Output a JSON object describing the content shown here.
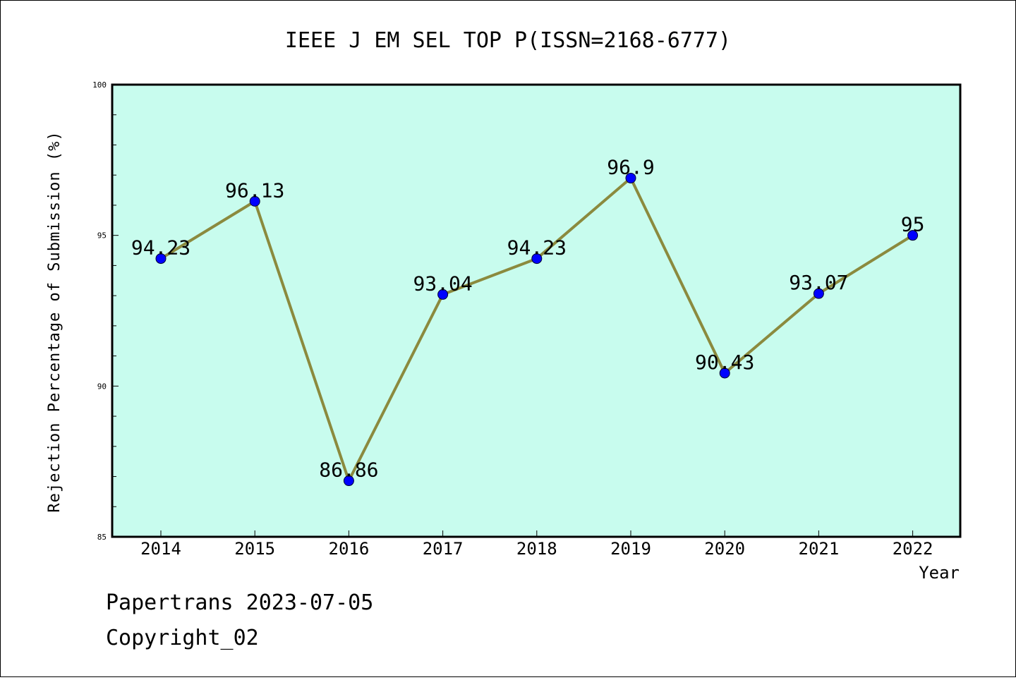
{
  "colors": {
    "plot_background": "#c8fcee",
    "line": "#8b8a3e",
    "marker": "#0000ff",
    "axis": "#000000",
    "frame": "#000000"
  },
  "chart_data": {
    "type": "line",
    "title": "IEEE J EM SEL TOP P(ISSN=2168-6777)",
    "xlabel": "Year",
    "ylabel": "Rejection Percentage of Submission (%)",
    "categories": [
      "2014",
      "2015",
      "2016",
      "2017",
      "2018",
      "2019",
      "2020",
      "2021",
      "2022"
    ],
    "values": [
      94.23,
      96.13,
      86.86,
      93.04,
      94.23,
      96.9,
      90.43,
      93.07,
      95
    ],
    "data_labels": [
      "94.23",
      "96.13",
      "86.86",
      "93.04",
      "94.23",
      "96.9",
      "90.43",
      "93.07",
      "95"
    ],
    "ylim": [
      85,
      100
    ],
    "y_major_ticks": [
      85,
      90,
      95,
      100
    ],
    "y_minor_step": 1,
    "grid": false,
    "legend": "none"
  },
  "footer": {
    "line1": "Papertrans 2023-07-05",
    "line2": "Copyright_02"
  }
}
